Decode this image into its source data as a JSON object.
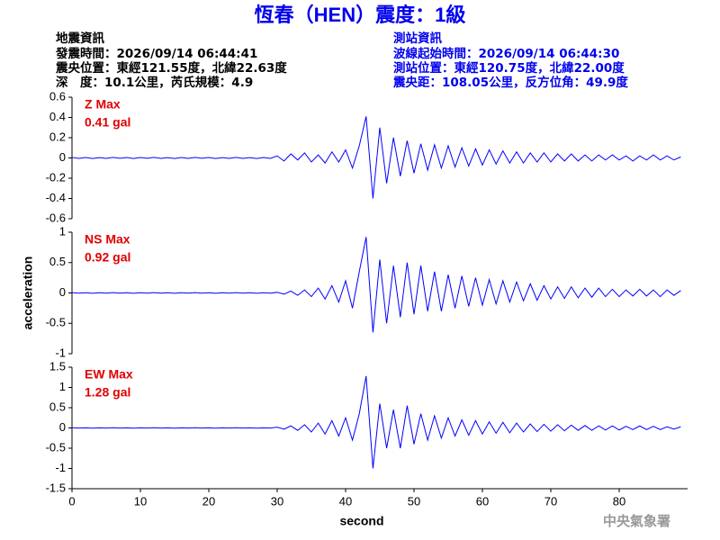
{
  "header": {
    "title": "恆春（HEN）震度：1級",
    "left": [
      "地震資訊",
      "發震時間：2026/09/14 06:44:41",
      "震央位置：東經121.55度，北緯22.63度",
      "深　度：10.1公里，芮氏規模：4.9"
    ],
    "right": [
      "測站資訊",
      "波線起始時間：2026/09/14 06:44:30",
      "測站位置：東經120.75度，北緯22.00度",
      "震央距：108.05公里，反方位角：49.9度"
    ]
  },
  "footer": "中央氣象署",
  "chart_data": [
    {
      "type": "line",
      "annotation": [
        "Z Max",
        "0.41 gal"
      ],
      "color": "#0000ff",
      "xlim": [
        0,
        90
      ],
      "ylim": [
        -0.6,
        0.6
      ],
      "yticks": [
        0.6,
        0.4,
        0.2,
        0,
        -0.2,
        -0.4,
        -0.6
      ],
      "x": [
        0,
        1,
        2,
        3,
        4,
        5,
        6,
        7,
        8,
        9,
        10,
        11,
        12,
        13,
        14,
        15,
        16,
        17,
        18,
        19,
        20,
        21,
        22,
        23,
        24,
        25,
        26,
        27,
        28,
        29,
        30,
        31,
        32,
        33,
        34,
        35,
        36,
        37,
        38,
        39,
        40,
        41,
        42,
        43,
        44,
        45,
        46,
        47,
        48,
        49,
        50,
        51,
        52,
        53,
        54,
        55,
        56,
        57,
        58,
        59,
        60,
        61,
        62,
        63,
        64,
        65,
        66,
        67,
        68,
        69,
        70,
        71,
        72,
        73,
        74,
        75,
        76,
        77,
        78,
        79,
        80,
        81,
        82,
        83,
        84,
        85,
        86,
        87,
        88,
        89
      ],
      "values": [
        0.005,
        -0.004,
        0.004,
        -0.005,
        0.003,
        -0.004,
        0.005,
        -0.003,
        0.004,
        -0.005,
        0.004,
        -0.003,
        0.005,
        -0.004,
        0.003,
        -0.005,
        0.004,
        -0.004,
        0.005,
        -0.003,
        0.004,
        -0.005,
        0.003,
        -0.004,
        0.005,
        -0.004,
        0.003,
        -0.005,
        0.004,
        -0.004,
        0.02,
        -0.03,
        0.04,
        -0.02,
        0.05,
        -0.04,
        0.03,
        -0.05,
        0.06,
        -0.04,
        0.08,
        -0.1,
        0.12,
        0.41,
        -0.4,
        0.3,
        -0.25,
        0.2,
        -0.18,
        0.17,
        -0.15,
        0.14,
        -0.12,
        0.13,
        -0.1,
        0.12,
        -0.09,
        0.1,
        -0.08,
        0.09,
        -0.07,
        0.08,
        -0.06,
        0.07,
        -0.05,
        0.06,
        -0.05,
        0.05,
        -0.04,
        0.05,
        -0.04,
        0.04,
        -0.03,
        0.04,
        -0.03,
        0.03,
        -0.03,
        0.03,
        -0.02,
        0.03,
        -0.02,
        0.02,
        -0.03,
        0.02,
        -0.02,
        0.03,
        -0.02,
        0.02,
        -0.02,
        0.01
      ]
    },
    {
      "type": "line",
      "annotation": [
        "NS Max",
        "0.92 gal"
      ],
      "ylabel": "acceleration",
      "color": "#0000ff",
      "xlim": [
        0,
        90
      ],
      "ylim": [
        -1,
        1
      ],
      "yticks": [
        1,
        0.5,
        0,
        -0.5,
        -1
      ],
      "x": [
        0,
        1,
        2,
        3,
        4,
        5,
        6,
        7,
        8,
        9,
        10,
        11,
        12,
        13,
        14,
        15,
        16,
        17,
        18,
        19,
        20,
        21,
        22,
        23,
        24,
        25,
        26,
        27,
        28,
        29,
        30,
        31,
        32,
        33,
        34,
        35,
        36,
        37,
        38,
        39,
        40,
        41,
        42,
        43,
        44,
        45,
        46,
        47,
        48,
        49,
        50,
        51,
        52,
        53,
        54,
        55,
        56,
        57,
        58,
        59,
        60,
        61,
        62,
        63,
        64,
        65,
        66,
        67,
        68,
        69,
        70,
        71,
        72,
        73,
        74,
        75,
        76,
        77,
        78,
        79,
        80,
        81,
        82,
        83,
        84,
        85,
        86,
        87,
        88,
        89
      ],
      "values": [
        0.005,
        -0.004,
        0.004,
        -0.005,
        0.003,
        -0.004,
        0.005,
        -0.003,
        0.004,
        -0.005,
        0.004,
        -0.003,
        0.005,
        -0.004,
        0.003,
        -0.005,
        0.004,
        -0.004,
        0.005,
        -0.003,
        0.004,
        -0.005,
        0.003,
        -0.004,
        0.005,
        -0.004,
        0.003,
        -0.005,
        0.004,
        -0.004,
        0.01,
        -0.02,
        0.03,
        -0.04,
        0.05,
        -0.06,
        0.08,
        -0.1,
        0.12,
        -0.15,
        0.2,
        -0.25,
        0.35,
        0.92,
        -0.65,
        0.55,
        -0.5,
        0.45,
        -0.4,
        0.5,
        -0.35,
        0.45,
        -0.3,
        0.35,
        -0.3,
        0.3,
        -0.25,
        0.28,
        -0.22,
        0.25,
        -0.2,
        0.22,
        -0.18,
        0.2,
        -0.15,
        0.18,
        -0.13,
        0.15,
        -0.12,
        0.12,
        -0.1,
        0.1,
        -0.09,
        0.1,
        -0.08,
        0.08,
        -0.07,
        0.08,
        -0.06,
        0.06,
        -0.06,
        0.05,
        -0.05,
        0.06,
        -0.05,
        0.05,
        -0.06,
        0.05,
        -0.04,
        0.04
      ]
    },
    {
      "type": "line",
      "annotation": [
        "EW Max",
        "1.28 gal"
      ],
      "xlabel": "second",
      "color": "#0000ff",
      "xlim": [
        0,
        90
      ],
      "ylim": [
        -1.5,
        1.5
      ],
      "yticks": [
        1.5,
        1,
        0.5,
        0,
        -0.5,
        -1,
        -1.5
      ],
      "xticks": [
        0,
        10,
        20,
        30,
        40,
        50,
        60,
        70,
        80
      ],
      "x": [
        0,
        1,
        2,
        3,
        4,
        5,
        6,
        7,
        8,
        9,
        10,
        11,
        12,
        13,
        14,
        15,
        16,
        17,
        18,
        19,
        20,
        21,
        22,
        23,
        24,
        25,
        26,
        27,
        28,
        29,
        30,
        31,
        32,
        33,
        34,
        35,
        36,
        37,
        38,
        39,
        40,
        41,
        42,
        43,
        44,
        45,
        46,
        47,
        48,
        49,
        50,
        51,
        52,
        53,
        54,
        55,
        56,
        57,
        58,
        59,
        60,
        61,
        62,
        63,
        64,
        65,
        66,
        67,
        68,
        69,
        70,
        71,
        72,
        73,
        74,
        75,
        76,
        77,
        78,
        79,
        80,
        81,
        82,
        83,
        84,
        85,
        86,
        87,
        88,
        89
      ],
      "values": [
        0.005,
        -0.004,
        0.004,
        -0.005,
        0.003,
        -0.004,
        0.005,
        -0.003,
        0.004,
        -0.005,
        0.004,
        -0.003,
        0.005,
        -0.004,
        0.003,
        -0.005,
        0.004,
        -0.004,
        0.005,
        -0.003,
        0.004,
        -0.005,
        0.003,
        -0.004,
        0.005,
        -0.004,
        0.003,
        -0.005,
        0.004,
        -0.004,
        0.02,
        -0.03,
        0.05,
        -0.06,
        0.08,
        -0.1,
        0.12,
        -0.15,
        0.18,
        -0.2,
        0.25,
        -0.3,
        0.35,
        1.28,
        -1.0,
        0.6,
        -0.5,
        0.45,
        -0.5,
        0.55,
        -0.4,
        0.35,
        -0.3,
        0.3,
        -0.25,
        0.25,
        -0.2,
        0.2,
        -0.18,
        0.18,
        -0.15,
        0.15,
        -0.13,
        0.14,
        -0.12,
        0.12,
        -0.1,
        0.1,
        -0.09,
        0.09,
        -0.08,
        0.08,
        -0.07,
        0.07,
        -0.06,
        0.06,
        -0.06,
        0.05,
        -0.05,
        0.05,
        -0.05,
        0.04,
        -0.04,
        0.05,
        -0.04,
        0.04,
        -0.04,
        0.03,
        -0.03,
        0.03
      ]
    }
  ]
}
